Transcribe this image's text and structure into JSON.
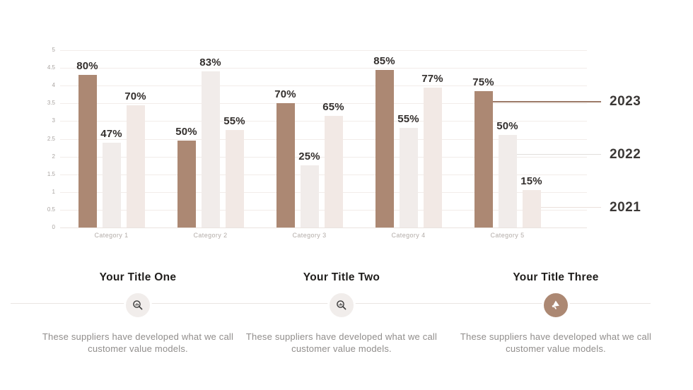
{
  "chart_data": {
    "type": "bar",
    "title": "",
    "categories": [
      "Category 1",
      "Category 2",
      "Category 3",
      "Category 4",
      "Category 5"
    ],
    "series": [
      {
        "name": "2023",
        "color": "#AC8873",
        "data_labels": [
          "80%",
          "50%",
          "70%",
          "85%",
          "75%"
        ],
        "values": [
          4.3,
          2.45,
          3.5,
          4.45,
          3.85
        ],
        "legend_line": {
          "value": 3.56,
          "color": "#9C7A68",
          "width": 2
        }
      },
      {
        "name": "2022",
        "color": "#F1ECEA",
        "data_labels": [
          "47%",
          "83%",
          "25%",
          "55%",
          "50%"
        ],
        "values": [
          2.4,
          4.4,
          1.75,
          2.8,
          2.6
        ],
        "legend_line": {
          "value": 2.07,
          "color": "#E2DEDC",
          "width": 1
        }
      },
      {
        "name": "2021",
        "color": "#F2E9E5",
        "data_labels": [
          "70%",
          "55%",
          "65%",
          "77%",
          "15%"
        ],
        "values": [
          3.45,
          2.75,
          3.15,
          3.95,
          1.05
        ],
        "legend_line": {
          "value": 0.58,
          "color": "#EBE0DB",
          "width": 1
        }
      }
    ],
    "y_axis": {
      "min": 0,
      "max": 5,
      "step": 0.5,
      "tick_labels": [
        "0",
        "0.5",
        "1",
        "1.5",
        "2",
        "2.5",
        "3",
        "3.5",
        "4",
        "4.5",
        "5"
      ]
    },
    "grid": "horizontal-only",
    "legend_position": "right-callout"
  },
  "features": [
    {
      "title": "Your Title One",
      "icon": "search-analytics-icon",
      "icon_style": "light",
      "description": "These suppliers have developed what we call customer value models."
    },
    {
      "title": "Your Title Two",
      "icon": "search-analytics-icon",
      "icon_style": "light",
      "description": "These suppliers have developed what we call customer value models."
    },
    {
      "title": "Your Title Three",
      "icon": "megaphone-icon",
      "icon_style": "brown",
      "description": "These suppliers have developed what we call customer value models."
    }
  ],
  "colors": {
    "accent_brown": "#AC8873",
    "bar_2022": "#F1ECEA",
    "bar_2021": "#F2E9E5",
    "gridline": "#F2ECE9",
    "axis_text": "#A9A4A1",
    "category_text": "#B3ACA8",
    "data_label_text": "#332F2D",
    "year_text": "#3B3836",
    "title_text": "#201E1C",
    "description_text": "#908D8B",
    "divider": "#E9E5E3",
    "icon_circle_light": "#F1EDEB",
    "icon_glyph_dark": "#3A3A3A"
  }
}
